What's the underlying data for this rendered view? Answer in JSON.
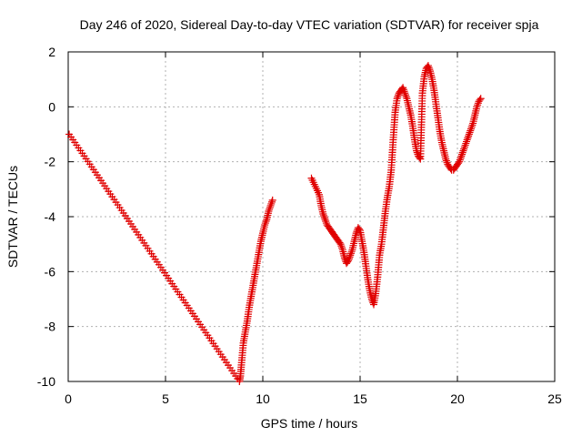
{
  "chart_data": {
    "type": "scatter",
    "title": "Day 246 of 2020, Sidereal Day-to-day VTEC variation (SDTVAR) for receiver spja",
    "xlabel": "GPS time / hours",
    "ylabel": "SDTVAR / TECUs",
    "xlim": [
      0,
      25
    ],
    "ylim": [
      -10,
      2
    ],
    "xticks": [
      0,
      5,
      10,
      15,
      20,
      25
    ],
    "yticks": [
      -10,
      -8,
      -6,
      -4,
      -2,
      0,
      2
    ],
    "xtick_labels": [
      "0",
      "5",
      "10",
      "15",
      "20",
      "25"
    ],
    "ytick_labels": [
      "-10",
      "-8",
      "-6",
      "-4",
      "-2",
      "0",
      "2"
    ],
    "grid": true,
    "marker": "plus",
    "color": "#e00000",
    "series": [
      {
        "x": [
          0.05,
          8.8,
          8.85,
          8.9,
          9.0,
          9.1,
          9.2,
          9.3,
          9.4,
          9.5,
          9.6,
          9.7,
          9.8,
          9.9,
          10.0,
          10.1,
          10.2,
          10.3,
          10.4,
          10.5
        ],
        "y": [
          -1.0,
          -10.0,
          -9.8,
          -9.4,
          -8.6,
          -8.2,
          -7.8,
          -7.3,
          -6.9,
          -6.5,
          -6.1,
          -5.7,
          -5.3,
          -4.9,
          -4.6,
          -4.3,
          -4.1,
          -3.8,
          -3.6,
          -3.4
        ]
      },
      {
        "x": [
          12.5,
          12.7,
          12.9,
          13.0,
          13.1,
          13.2,
          13.3,
          13.4,
          13.5,
          13.6,
          13.7,
          13.8,
          13.9,
          14.0,
          14.1,
          14.2,
          14.3,
          14.4,
          14.5,
          14.6,
          14.7,
          14.8,
          14.9,
          15.0,
          15.1,
          15.2,
          15.3,
          15.4,
          15.5,
          15.6,
          15.7,
          15.8,
          15.9,
          16.0,
          16.1,
          16.2,
          16.3,
          16.4,
          16.5,
          16.6,
          16.7,
          16.8,
          16.9,
          17.0,
          17.1,
          17.2,
          17.3,
          17.4,
          17.5,
          17.6,
          17.7,
          17.8,
          17.9,
          18.0,
          18.1,
          18.2,
          18.3,
          18.4,
          18.5,
          18.6,
          18.7,
          18.8,
          18.9,
          19.0,
          19.1,
          19.2,
          19.3,
          19.4,
          19.5,
          19.6,
          19.7,
          19.8,
          19.9,
          20.0,
          20.1,
          20.2,
          20.3,
          20.4,
          20.5,
          20.6,
          20.7,
          20.8,
          20.9,
          21.0,
          21.1,
          21.2
        ],
        "y": [
          -2.6,
          -2.9,
          -3.2,
          -3.6,
          -3.9,
          -4.1,
          -4.3,
          -4.4,
          -4.5,
          -4.6,
          -4.7,
          -4.8,
          -4.9,
          -5.0,
          -5.2,
          -5.5,
          -5.7,
          -5.6,
          -5.4,
          -5.2,
          -4.9,
          -4.6,
          -4.4,
          -4.5,
          -4.9,
          -5.3,
          -5.8,
          -6.3,
          -6.7,
          -7.0,
          -7.2,
          -6.8,
          -6.2,
          -5.4,
          -5.0,
          -4.4,
          -3.8,
          -3.3,
          -2.9,
          -2.3,
          -1.2,
          -0.2,
          0.3,
          0.5,
          0.6,
          0.7,
          0.5,
          0.3,
          0.0,
          -0.3,
          -0.7,
          -1.2,
          -1.6,
          -1.8,
          -1.9,
          0.5,
          1.1,
          1.4,
          1.5,
          1.3,
          1.0,
          0.6,
          0.1,
          -0.4,
          -0.9,
          -1.3,
          -1.6,
          -1.9,
          -2.1,
          -2.2,
          -2.3,
          -2.3,
          -2.2,
          -2.1,
          -2.0,
          -1.8,
          -1.6,
          -1.4,
          -1.2,
          -1.0,
          -0.8,
          -0.6,
          -0.3,
          0.0,
          0.2,
          0.3
        ]
      }
    ]
  }
}
